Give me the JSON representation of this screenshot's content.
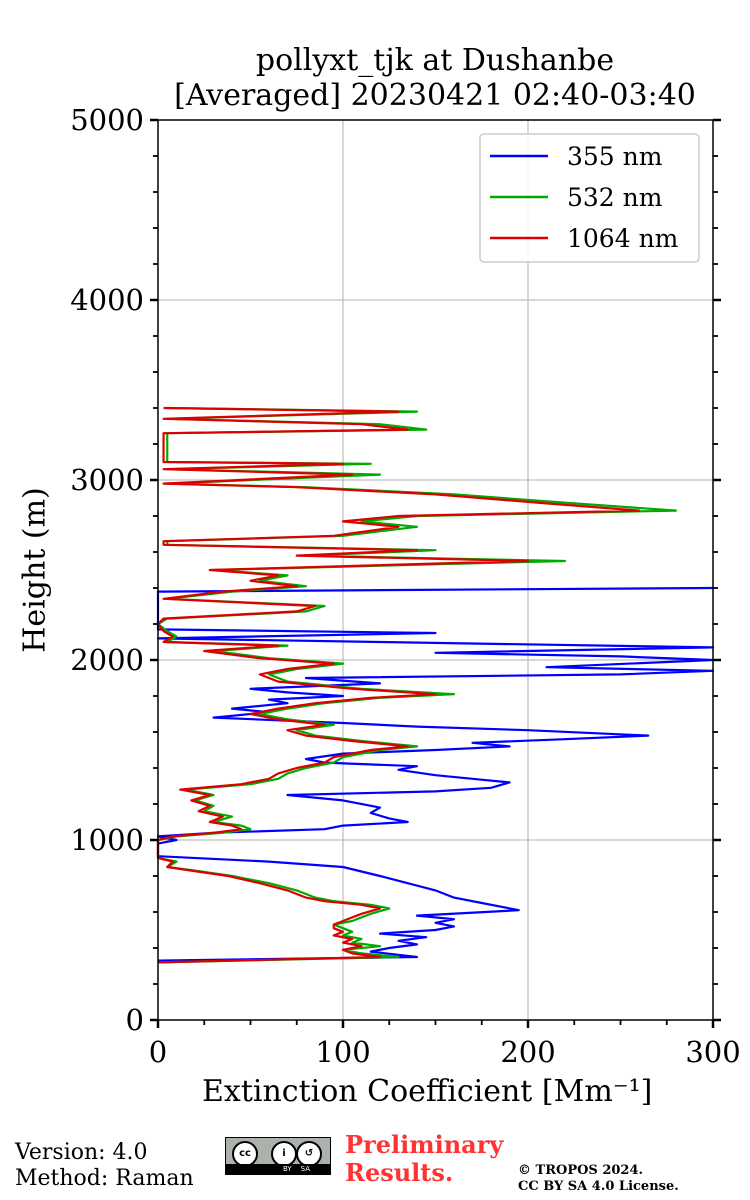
{
  "chart_data": {
    "type": "line",
    "title": [
      "pollyxt_tjk at Dushanbe",
      "[Averaged] 20230421 02:40-03:40"
    ],
    "xlabel": "Extinction Coefficient [Mm⁻¹]",
    "ylabel": "Height (m)",
    "xlim": [
      0,
      300
    ],
    "ylim": [
      0,
      5000
    ],
    "xticks": [
      0,
      100,
      200,
      300
    ],
    "yticks": [
      0,
      1000,
      2000,
      3000,
      4000,
      5000
    ],
    "grid": true,
    "legend_position": "top-right",
    "series": [
      {
        "name": "355 nm",
        "color": "#0000ff",
        "points": [
          [
            0,
            330
          ],
          [
            140,
            350
          ],
          [
            115,
            380
          ],
          [
            125,
            400
          ],
          [
            140,
            420
          ],
          [
            130,
            440
          ],
          [
            145,
            460
          ],
          [
            120,
            480
          ],
          [
            150,
            500
          ],
          [
            160,
            520
          ],
          [
            150,
            540
          ],
          [
            160,
            560
          ],
          [
            140,
            580
          ],
          [
            195,
            610
          ],
          [
            185,
            630
          ],
          [
            175,
            650
          ],
          [
            160,
            680
          ],
          [
            150,
            720
          ],
          [
            135,
            760
          ],
          [
            120,
            800
          ],
          [
            100,
            850
          ],
          [
            60,
            880
          ],
          [
            0,
            910
          ],
          [
            0,
            980
          ],
          [
            10,
            1000
          ],
          [
            0,
            1020
          ],
          [
            30,
            1040
          ],
          [
            90,
            1060
          ],
          [
            100,
            1080
          ],
          [
            135,
            1100
          ],
          [
            125,
            1120
          ],
          [
            115,
            1150
          ],
          [
            120,
            1180
          ],
          [
            100,
            1220
          ],
          [
            70,
            1250
          ],
          [
            150,
            1270
          ],
          [
            180,
            1290
          ],
          [
            190,
            1320
          ],
          [
            170,
            1340
          ],
          [
            150,
            1360
          ],
          [
            130,
            1390
          ],
          [
            140,
            1410
          ],
          [
            90,
            1430
          ],
          [
            80,
            1450
          ],
          [
            100,
            1480
          ],
          [
            150,
            1500
          ],
          [
            190,
            1520
          ],
          [
            170,
            1540
          ],
          [
            220,
            1560
          ],
          [
            265,
            1580
          ],
          [
            200,
            1610
          ],
          [
            140,
            1630
          ],
          [
            100,
            1650
          ],
          [
            30,
            1680
          ],
          [
            60,
            1710
          ],
          [
            40,
            1730
          ],
          [
            70,
            1760
          ],
          [
            60,
            1780
          ],
          [
            100,
            1800
          ],
          [
            70,
            1820
          ],
          [
            50,
            1840
          ],
          [
            120,
            1870
          ],
          [
            80,
            1900
          ],
          [
            250,
            1920
          ],
          [
            300,
            1940
          ],
          [
            210,
            1960
          ],
          [
            300,
            2000
          ],
          [
            250,
            2020
          ],
          [
            150,
            2040
          ],
          [
            300,
            2070
          ],
          [
            120,
            2100
          ],
          [
            0,
            2120
          ],
          [
            150,
            2150
          ],
          [
            0,
            2170
          ],
          [
            0,
            2200
          ],
          [
            0,
            2380
          ],
          [
            300,
            2400
          ]
        ]
      },
      {
        "name": "532 nm",
        "color": "#00aa00",
        "points": [
          [
            0,
            320
          ],
          [
            130,
            350
          ],
          [
            110,
            370
          ],
          [
            100,
            390
          ],
          [
            120,
            410
          ],
          [
            105,
            430
          ],
          [
            110,
            450
          ],
          [
            100,
            470
          ],
          [
            105,
            490
          ],
          [
            100,
            510
          ],
          [
            95,
            530
          ],
          [
            105,
            550
          ],
          [
            110,
            570
          ],
          [
            115,
            590
          ],
          [
            125,
            620
          ],
          [
            115,
            640
          ],
          [
            95,
            660
          ],
          [
            85,
            680
          ],
          [
            75,
            720
          ],
          [
            60,
            760
          ],
          [
            40,
            800
          ],
          [
            20,
            830
          ],
          [
            5,
            850
          ],
          [
            10,
            880
          ],
          [
            0,
            900
          ],
          [
            0,
            1000
          ],
          [
            10,
            1020
          ],
          [
            35,
            1040
          ],
          [
            50,
            1060
          ],
          [
            45,
            1080
          ],
          [
            30,
            1100
          ],
          [
            40,
            1130
          ],
          [
            25,
            1160
          ],
          [
            30,
            1190
          ],
          [
            20,
            1220
          ],
          [
            30,
            1250
          ],
          [
            15,
            1280
          ],
          [
            50,
            1310
          ],
          [
            65,
            1340
          ],
          [
            70,
            1370
          ],
          [
            80,
            1400
          ],
          [
            95,
            1430
          ],
          [
            100,
            1460
          ],
          [
            120,
            1500
          ],
          [
            140,
            1520
          ],
          [
            110,
            1550
          ],
          [
            85,
            1580
          ],
          [
            75,
            1610
          ],
          [
            95,
            1640
          ],
          [
            70,
            1670
          ],
          [
            55,
            1700
          ],
          [
            70,
            1730
          ],
          [
            90,
            1760
          ],
          [
            120,
            1790
          ],
          [
            160,
            1810
          ],
          [
            110,
            1840
          ],
          [
            70,
            1880
          ],
          [
            60,
            1920
          ],
          [
            75,
            1950
          ],
          [
            100,
            1980
          ],
          [
            60,
            2010
          ],
          [
            30,
            2050
          ],
          [
            70,
            2080
          ],
          [
            5,
            2100
          ],
          [
            10,
            2130
          ],
          [
            5,
            2160
          ],
          [
            0,
            2200
          ],
          [
            5,
            2230
          ],
          [
            80,
            2270
          ],
          [
            90,
            2300
          ],
          [
            5,
            2340
          ],
          [
            40,
            2380
          ],
          [
            80,
            2410
          ],
          [
            55,
            2440
          ],
          [
            70,
            2470
          ],
          [
            30,
            2500
          ],
          [
            220,
            2550
          ],
          [
            80,
            2580
          ],
          [
            150,
            2610
          ],
          [
            5,
            2640
          ],
          [
            5,
            2660
          ],
          [
            100,
            2690
          ],
          [
            140,
            2740
          ],
          [
            110,
            2770
          ],
          [
            140,
            2800
          ],
          [
            280,
            2830
          ],
          [
            225,
            2870
          ],
          [
            160,
            2920
          ],
          [
            80,
            2960
          ],
          [
            5,
            2980
          ],
          [
            120,
            3030
          ],
          [
            5,
            3060
          ],
          [
            115,
            3090
          ],
          [
            5,
            3100
          ],
          [
            5,
            3260
          ],
          [
            145,
            3280
          ],
          [
            120,
            3310
          ],
          [
            5,
            3340
          ],
          [
            140,
            3380
          ],
          [
            5,
            3400
          ]
        ]
      },
      {
        "name": "1064 nm",
        "color": "#dd0000",
        "points": [
          [
            0,
            320
          ],
          [
            120,
            350
          ],
          [
            105,
            370
          ],
          [
            100,
            390
          ],
          [
            110,
            410
          ],
          [
            100,
            430
          ],
          [
            105,
            450
          ],
          [
            95,
            470
          ],
          [
            100,
            490
          ],
          [
            95,
            510
          ],
          [
            95,
            530
          ],
          [
            100,
            550
          ],
          [
            105,
            570
          ],
          [
            110,
            590
          ],
          [
            120,
            620
          ],
          [
            110,
            640
          ],
          [
            90,
            660
          ],
          [
            80,
            680
          ],
          [
            70,
            720
          ],
          [
            55,
            760
          ],
          [
            38,
            800
          ],
          [
            18,
            830
          ],
          [
            5,
            850
          ],
          [
            8,
            880
          ],
          [
            0,
            900
          ],
          [
            0,
            1000
          ],
          [
            8,
            1020
          ],
          [
            30,
            1040
          ],
          [
            45,
            1060
          ],
          [
            40,
            1080
          ],
          [
            28,
            1100
          ],
          [
            35,
            1130
          ],
          [
            22,
            1160
          ],
          [
            28,
            1190
          ],
          [
            18,
            1220
          ],
          [
            28,
            1250
          ],
          [
            12,
            1280
          ],
          [
            45,
            1310
          ],
          [
            60,
            1340
          ],
          [
            65,
            1370
          ],
          [
            75,
            1400
          ],
          [
            90,
            1430
          ],
          [
            95,
            1460
          ],
          [
            115,
            1500
          ],
          [
            135,
            1520
          ],
          [
            105,
            1550
          ],
          [
            80,
            1580
          ],
          [
            70,
            1610
          ],
          [
            90,
            1640
          ],
          [
            65,
            1670
          ],
          [
            50,
            1700
          ],
          [
            65,
            1730
          ],
          [
            85,
            1760
          ],
          [
            115,
            1790
          ],
          [
            150,
            1810
          ],
          [
            105,
            1840
          ],
          [
            65,
            1880
          ],
          [
            55,
            1920
          ],
          [
            70,
            1950
          ],
          [
            95,
            1980
          ],
          [
            55,
            2010
          ],
          [
            25,
            2050
          ],
          [
            65,
            2080
          ],
          [
            3,
            2100
          ],
          [
            8,
            2130
          ],
          [
            3,
            2160
          ],
          [
            0,
            2200
          ],
          [
            3,
            2230
          ],
          [
            75,
            2270
          ],
          [
            85,
            2300
          ],
          [
            3,
            2340
          ],
          [
            35,
            2380
          ],
          [
            75,
            2410
          ],
          [
            50,
            2440
          ],
          [
            65,
            2470
          ],
          [
            28,
            2500
          ],
          [
            200,
            2550
          ],
          [
            75,
            2580
          ],
          [
            140,
            2610
          ],
          [
            3,
            2640
          ],
          [
            3,
            2660
          ],
          [
            95,
            2690
          ],
          [
            130,
            2740
          ],
          [
            100,
            2770
          ],
          [
            130,
            2800
          ],
          [
            260,
            2830
          ],
          [
            210,
            2870
          ],
          [
            150,
            2920
          ],
          [
            75,
            2960
          ],
          [
            3,
            2980
          ],
          [
            105,
            3030
          ],
          [
            3,
            3060
          ],
          [
            100,
            3090
          ],
          [
            3,
            3100
          ],
          [
            3,
            3260
          ],
          [
            135,
            3280
          ],
          [
            110,
            3310
          ],
          [
            3,
            3340
          ],
          [
            130,
            3380
          ],
          [
            3,
            3400
          ]
        ]
      }
    ]
  },
  "footer": {
    "version": "Version: 4.0",
    "method": "Method: Raman",
    "preliminary": [
      "Preliminary",
      "Results."
    ],
    "copyright": [
      "© TROPOS 2024.",
      "CC BY SA 4.0 License."
    ],
    "cc_badge": {
      "cc": "cc",
      "by": "BY",
      "sa": "SA"
    }
  }
}
